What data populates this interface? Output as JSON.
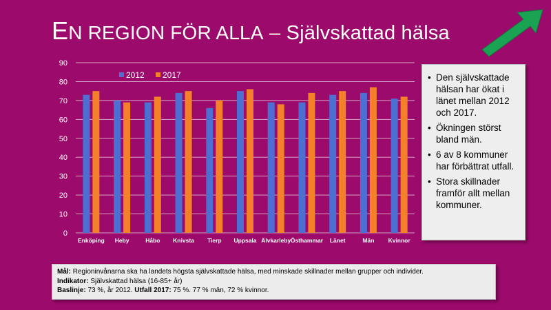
{
  "title": {
    "initial": "E",
    "rest": "N REGION FÖR ALLA",
    "suffix": " – Självskattad hälsa"
  },
  "colors": {
    "background": "#9c0a6b",
    "series_2012": "#4d6fd1",
    "series_2017": "#f4802a",
    "arrow": "#1aa352"
  },
  "icons": {
    "arrow": "arrow-up-right-icon"
  },
  "panel": {
    "bullets": [
      "Den självskattade hälsan har ökat i länet mellan 2012 och 2017.",
      "Ökningen störst bland män.",
      "6 av 8 kommuner har förbättrat utfall.",
      "Stora skillnader framför allt mellan kommuner."
    ]
  },
  "footer": {
    "mal_label": "Mål:",
    "mal_text": " Regioninvånarna ska ha landets högsta självskattade hälsa, med minskade skillnader mellan grupper och individer.",
    "indikator_label": "Indikator:",
    "indikator_text": " Självskattad hälsa (16-85+ år)",
    "baslinje_label": "Baslinje:",
    "baslinje_text": " 73 %, år 2012. ",
    "utfall_label": "Utfall 2017:",
    "utfall_text": " 75 %. 77 % män, 72 % kvinnor."
  },
  "chart_data": {
    "type": "bar",
    "categories": [
      "Enköping",
      "Heby",
      "Håbo",
      "Knivsta",
      "Tierp",
      "Uppsala",
      "Älvkarleby",
      "Östhammar",
      "Länet",
      "Män",
      "Kvinnor"
    ],
    "series": [
      {
        "name": "2012",
        "values": [
          73,
          70,
          69,
          74,
          66,
          75,
          69,
          69,
          73,
          74,
          71
        ]
      },
      {
        "name": "2017",
        "values": [
          75,
          69,
          72,
          75,
          70,
          76,
          68,
          74,
          75,
          77,
          72
        ]
      }
    ],
    "yticks": [
      0,
      10,
      20,
      30,
      40,
      50,
      60,
      70,
      80,
      90
    ],
    "ylim": [
      0,
      90
    ],
    "grid": true,
    "legend": "top-left"
  }
}
